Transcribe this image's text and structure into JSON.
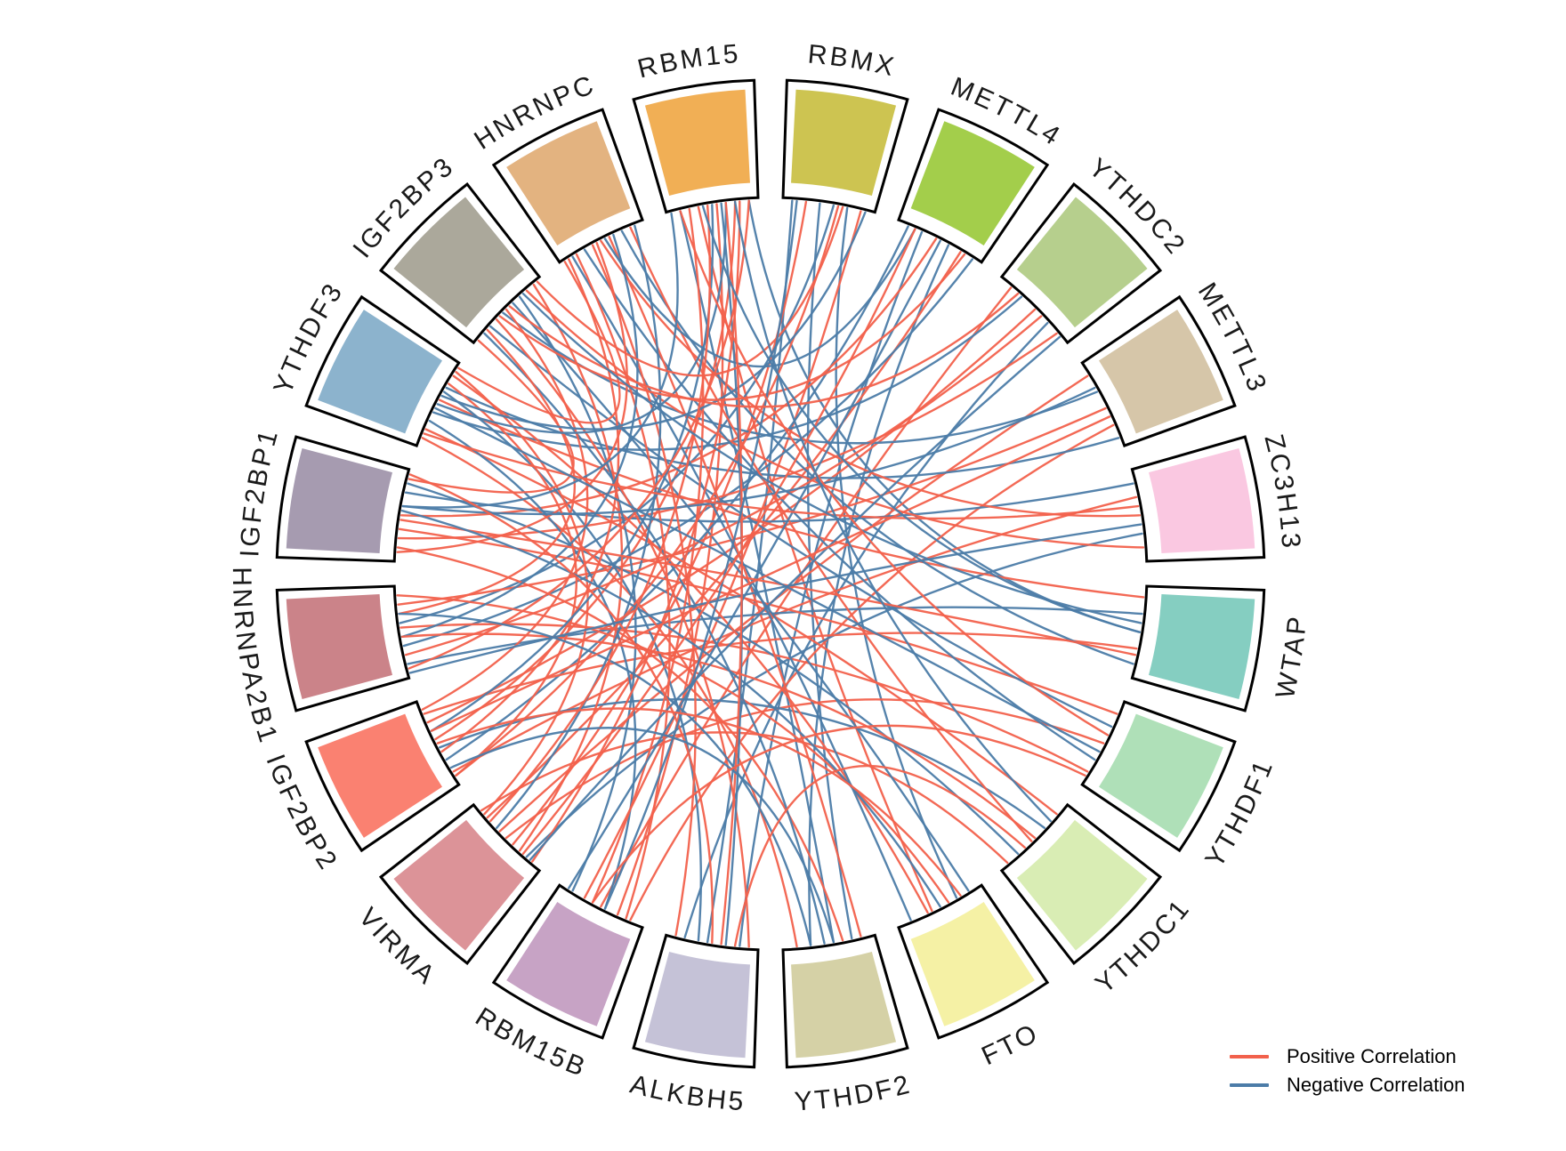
{
  "legend": {
    "items": [
      {
        "label": "Positive Correlation",
        "color": "#F2614C"
      },
      {
        "label": "Negative Correlation",
        "color": "#4C7CA8"
      }
    ]
  },
  "chart_data": {
    "type": "chord",
    "title": "",
    "description": "Circular chord diagram of correlations among 20 m6A regulator genes. Red chords = positive correlation, blue chords = negative correlation. Sectors listed clockwise starting just right of 12 o'clock.",
    "genes": [
      {
        "name": "RBMX",
        "color": "#CDC451"
      },
      {
        "name": "METTL4",
        "color": "#A3CE4B"
      },
      {
        "name": "YTHDC2",
        "color": "#B6CF8D"
      },
      {
        "name": "METTL3",
        "color": "#D6C6A9"
      },
      {
        "name": "ZC3H13",
        "color": "#FAC8E1"
      },
      {
        "name": "WTAP",
        "color": "#85CEC1"
      },
      {
        "name": "YTHDF1",
        "color": "#AFE0B8"
      },
      {
        "name": "YTHDC1",
        "color": "#D9EDB4"
      },
      {
        "name": "FTO",
        "color": "#F5F1A5"
      },
      {
        "name": "YTHDF2",
        "color": "#D5D1A6"
      },
      {
        "name": "ALKBH5",
        "color": "#C5C2D7"
      },
      {
        "name": "RBM15B",
        "color": "#C7A3C5"
      },
      {
        "name": "VIRMA",
        "color": "#DC9398"
      },
      {
        "name": "IGF2BP2",
        "color": "#FA8171"
      },
      {
        "name": "HNRNPA2B1",
        "color": "#CB8389"
      },
      {
        "name": "IGF2BP1",
        "color": "#A69BB0"
      },
      {
        "name": "YTHDF3",
        "color": "#8CB3CD"
      },
      {
        "name": "IGF2BP3",
        "color": "#ABA89B"
      },
      {
        "name": "HNRNPC",
        "color": "#E3B380"
      },
      {
        "name": "RBM15",
        "color": "#F1AF55"
      }
    ],
    "link_colors": {
      "p": "#F2614C",
      "n": "#4C7CA8"
    },
    "links_format": [
      "source_index",
      "source_pos",
      "target_index",
      "target_pos",
      "sign"
    ],
    "links": [
      [
        19,
        0.15,
        9,
        0.45,
        "n"
      ],
      [
        19,
        0.35,
        8,
        0.6,
        "p"
      ],
      [
        19,
        0.55,
        11,
        0.3,
        "p"
      ],
      [
        19,
        0.75,
        13,
        0.55,
        "p"
      ],
      [
        19,
        0.9,
        5,
        0.5,
        "n"
      ],
      [
        0,
        0.1,
        10,
        0.55,
        "n"
      ],
      [
        0,
        0.25,
        12,
        0.4,
        "p"
      ],
      [
        0,
        0.4,
        9,
        0.25,
        "n"
      ],
      [
        0,
        0.55,
        14,
        0.6,
        "n"
      ],
      [
        0,
        0.7,
        8,
        0.3,
        "n"
      ],
      [
        0,
        0.85,
        11,
        0.7,
        "p"
      ],
      [
        1,
        0.12,
        13,
        0.3,
        "n"
      ],
      [
        1,
        0.28,
        10,
        0.2,
        "n"
      ],
      [
        1,
        0.45,
        15,
        0.5,
        "p"
      ],
      [
        1,
        0.6,
        9,
        0.7,
        "n"
      ],
      [
        1,
        0.75,
        12,
        0.8,
        "p"
      ],
      [
        1,
        0.9,
        14,
        0.35,
        "n"
      ],
      [
        2,
        0.15,
        11,
        0.5,
        "p"
      ],
      [
        2,
        0.3,
        16,
        0.4,
        "n"
      ],
      [
        2,
        0.5,
        13,
        0.75,
        "p"
      ],
      [
        2,
        0.7,
        10,
        0.8,
        "n"
      ],
      [
        2,
        0.85,
        15,
        0.25,
        "p"
      ],
      [
        3,
        0.15,
        12,
        0.6,
        "p"
      ],
      [
        3,
        0.35,
        17,
        0.45,
        "n"
      ],
      [
        3,
        0.55,
        14,
        0.8,
        "p"
      ],
      [
        3,
        0.75,
        11,
        0.15,
        "p"
      ],
      [
        3,
        0.9,
        16,
        0.7,
        "n"
      ],
      [
        4,
        0.15,
        15,
        0.75,
        "n"
      ],
      [
        4,
        0.3,
        13,
        0.15,
        "p"
      ],
      [
        4,
        0.5,
        18,
        0.5,
        "p"
      ],
      [
        4,
        0.7,
        12,
        0.2,
        "n"
      ],
      [
        4,
        0.85,
        17,
        0.8,
        "p"
      ],
      [
        5,
        0.12,
        16,
        0.55,
        "p"
      ],
      [
        5,
        0.3,
        14,
        0.15,
        "n"
      ],
      [
        5,
        0.68,
        13,
        0.85,
        "p"
      ],
      [
        5,
        0.85,
        18,
        0.75,
        "n"
      ],
      [
        6,
        0.15,
        15,
        0.35,
        "p"
      ],
      [
        6,
        0.3,
        17,
        0.25,
        "n"
      ],
      [
        6,
        0.5,
        12,
        0.5,
        "p"
      ],
      [
        6,
        0.7,
        18,
        0.3,
        "n"
      ],
      [
        6,
        0.85,
        14,
        0.55,
        "p"
      ],
      [
        7,
        0.15,
        16,
        0.2,
        "p"
      ],
      [
        7,
        0.35,
        13,
        0.45,
        "n"
      ],
      [
        7,
        0.55,
        18,
        0.85,
        "p"
      ],
      [
        7,
        0.75,
        15,
        0.85,
        "n"
      ],
      [
        7,
        0.9,
        12,
        0.9,
        "p"
      ],
      [
        8,
        0.15,
        17,
        0.6,
        "n"
      ],
      [
        8,
        0.4,
        14,
        0.9,
        "p"
      ],
      [
        8,
        0.65,
        16,
        0.85,
        "p"
      ],
      [
        8,
        0.85,
        18,
        0.15,
        "n"
      ],
      [
        9,
        0.15,
        18,
        0.6,
        "p"
      ],
      [
        9,
        0.35,
        15,
        0.15,
        "p"
      ],
      [
        9,
        0.55,
        17,
        0.15,
        "n"
      ],
      [
        9,
        0.85,
        16,
        0.1,
        "p"
      ],
      [
        10,
        0.1,
        17,
        0.35,
        "p"
      ],
      [
        10,
        0.35,
        19,
        0.6,
        "n"
      ],
      [
        10,
        0.65,
        16,
        0.65,
        "n"
      ],
      [
        10,
        0.9,
        18,
        0.4,
        "p"
      ],
      [
        11,
        0.2,
        18,
        0.2,
        "p"
      ],
      [
        11,
        0.45,
        16,
        0.3,
        "n"
      ],
      [
        11,
        0.6,
        19,
        0.25,
        "p"
      ],
      [
        11,
        0.85,
        17,
        0.7,
        "n"
      ],
      [
        12,
        0.12,
        19,
        0.8,
        "p"
      ],
      [
        12,
        0.3,
        17,
        0.9,
        "p"
      ],
      [
        12,
        0.65,
        18,
        0.9,
        "n"
      ],
      [
        12,
        0.85,
        16,
        0.9,
        "p"
      ],
      [
        13,
        0.1,
        16,
        0.75,
        "p"
      ],
      [
        13,
        0.4,
        18,
        0.1,
        "p"
      ],
      [
        13,
        0.65,
        19,
        0.5,
        "n"
      ],
      [
        13,
        0.9,
        17,
        0.5,
        "p"
      ],
      [
        14,
        0.1,
        19,
        0.9,
        "p"
      ],
      [
        14,
        0.45,
        18,
        0.65,
        "n"
      ],
      [
        14,
        0.7,
        17,
        0.2,
        "p"
      ],
      [
        15,
        0.1,
        18,
        0.45,
        "p"
      ],
      [
        15,
        0.6,
        19,
        0.05,
        "n"
      ],
      [
        15,
        0.9,
        17,
        0.05,
        "p"
      ],
      [
        16,
        0.5,
        19,
        0.65,
        "n"
      ],
      [
        16,
        0.95,
        18,
        0.05,
        "p"
      ],
      [
        17,
        0.95,
        0,
        0.65,
        "p"
      ],
      [
        18,
        0.55,
        1,
        0.2,
        "n"
      ],
      [
        0,
        0.6,
        13,
        0.1,
        "p"
      ],
      [
        1,
        0.5,
        11,
        0.9,
        "n"
      ],
      [
        2,
        0.6,
        14,
        0.25,
        "p"
      ],
      [
        3,
        0.3,
        15,
        0.6,
        "n"
      ],
      [
        4,
        0.4,
        16,
        0.15,
        "p"
      ],
      [
        5,
        0.75,
        15,
        0.45,
        "p"
      ],
      [
        6,
        0.6,
        16,
        0.45,
        "n"
      ],
      [
        7,
        0.5,
        14,
        0.45,
        "p"
      ],
      [
        8,
        0.5,
        15,
        0.55,
        "n"
      ],
      [
        9,
        0.7,
        14,
        0.7,
        "n"
      ],
      [
        10,
        0.5,
        15,
        0.95,
        "p"
      ],
      [
        0,
        0.9,
        16,
        0.6,
        "n"
      ],
      [
        1,
        0.8,
        17,
        0.4,
        "p"
      ],
      [
        2,
        0.9,
        12,
        0.15,
        "n"
      ],
      [
        3,
        0.65,
        13,
        0.65,
        "p"
      ],
      [
        4,
        0.6,
        14,
        0.05,
        "n"
      ],
      [
        19,
        0.45,
        12,
        0.75,
        "p"
      ],
      [
        19,
        0.65,
        10,
        0.4,
        "p"
      ],
      [
        0,
        0.15,
        11,
        0.45,
        "n"
      ],
      [
        1,
        0.2,
        12,
        0.25,
        "p"
      ],
      [
        2,
        0.25,
        17,
        0.55,
        "p"
      ],
      [
        5,
        0.4,
        17,
        0.75,
        "n"
      ],
      [
        6,
        0.4,
        19,
        0.15,
        "p"
      ],
      [
        7,
        0.25,
        19,
        0.75,
        "n"
      ],
      [
        8,
        0.25,
        13,
        0.5,
        "p"
      ],
      [
        9,
        0.45,
        13,
        0.2,
        "n"
      ],
      [
        6,
        0.9,
        11,
        0.6,
        "p"
      ],
      [
        7,
        0.65,
        10,
        0.25,
        "p"
      ],
      [
        5,
        0.5,
        19,
        0.4,
        "n"
      ]
    ],
    "legend_position": "bottom-right",
    "legend_entries": [
      "Positive Correlation",
      "Negative Correlation"
    ]
  }
}
